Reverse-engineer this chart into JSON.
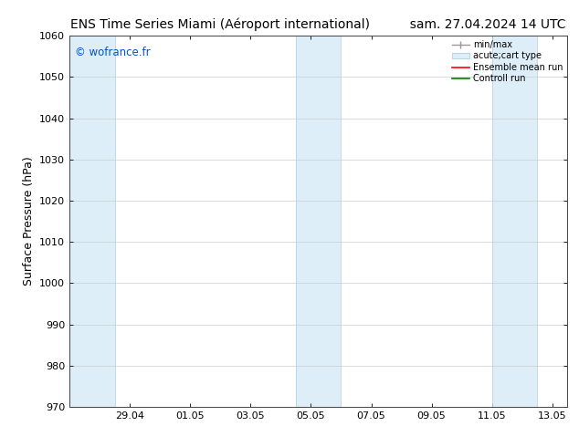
{
  "title_left": "ENS Time Series Miami (Aéroport international)",
  "title_right": "sam. 27.04.2024 14 UTC",
  "ylabel": "Surface Pressure (hPa)",
  "watermark": "© wofrance.fr",
  "ylim": [
    970,
    1060
  ],
  "yticks": [
    970,
    980,
    990,
    1000,
    1010,
    1020,
    1030,
    1040,
    1050,
    1060
  ],
  "xtick_labels": [
    "29.04",
    "01.05",
    "03.05",
    "05.05",
    "07.05",
    "09.05",
    "11.05",
    "13.05"
  ],
  "shaded_color": "#ddeef8",
  "shaded_edge_color": "#b8d4e8",
  "background_color": "#ffffff",
  "legend_entries": [
    "min/max",
    "acute;cart type",
    "Ensemble mean run",
    "Controll run"
  ],
  "legend_colors_line": [
    "#999999",
    "#bbccdd",
    "#ff0000",
    "#008000"
  ],
  "watermark_color": "#0055cc",
  "title_fontsize": 10,
  "tick_fontsize": 8,
  "ylabel_fontsize": 9
}
